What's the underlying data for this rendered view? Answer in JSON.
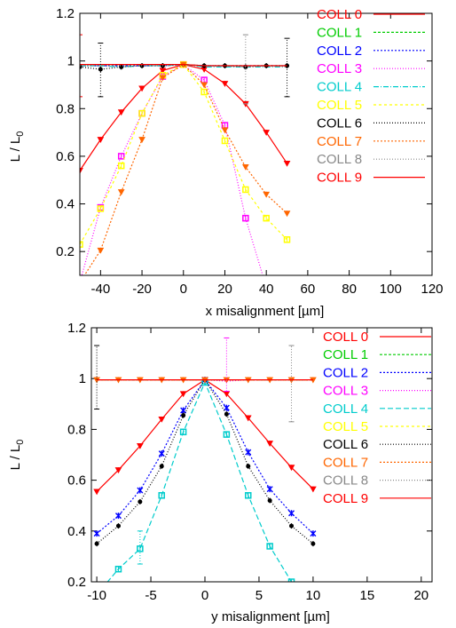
{
  "chart_data": [
    {
      "type": "line",
      "xlabel": "x misalignment [µm]",
      "ylabel_main": "L / L",
      "ylabel_sub": "0",
      "xlim": [
        -50,
        120
      ],
      "ylim": [
        0.1,
        1.2
      ],
      "xticks": [
        "-40",
        "-20",
        "0",
        "20",
        "40",
        "60",
        "80",
        "100",
        "120"
      ],
      "xtick_values": [
        -40,
        -20,
        0,
        20,
        40,
        60,
        80,
        100,
        120
      ],
      "yticks": [
        "0.2",
        "0.4",
        "0.6",
        "0.8",
        "1",
        "1.2"
      ],
      "ytick_values": [
        0.2,
        0.4,
        0.6,
        0.8,
        1.0,
        1.2
      ],
      "legend_position": "top-right",
      "series": [
        {
          "name": "COLL 0",
          "color": "#ff0000",
          "dash": "",
          "marker": "tri",
          "x": [
            -50,
            -40,
            -30,
            -20,
            -10,
            0,
            10,
            20,
            30,
            40,
            50
          ],
          "y": [
            0.54,
            0.67,
            0.785,
            0.885,
            0.96,
            0.985,
            0.965,
            0.905,
            0.82,
            0.7,
            0.57
          ]
        },
        {
          "name": "COLL 1",
          "color": "#00cc00",
          "dash": "3,2",
          "marker": "none",
          "x": [
            -50,
            -40,
            -30,
            -20,
            -10,
            0,
            10,
            20,
            30,
            40,
            50
          ],
          "y": [
            0.985,
            0.985,
            0.985,
            0.985,
            0.985,
            0.985,
            0.98,
            0.98,
            0.98,
            0.98,
            0.98
          ]
        },
        {
          "name": "COLL 2",
          "color": "#0000ff",
          "dash": "2,2",
          "marker": "none",
          "x": [
            -50,
            -40,
            -30,
            -20,
            -10,
            0,
            10,
            20,
            30,
            40,
            50
          ],
          "y": [
            0.98,
            0.98,
            0.98,
            0.98,
            0.98,
            0.985,
            0.98,
            0.98,
            0.98,
            0.98,
            0.98
          ]
        },
        {
          "name": "COLL 3",
          "color": "#ff00ff",
          "dash": "1,2",
          "marker": "square",
          "x": [
            -50,
            -40,
            -30,
            -20,
            -10,
            0,
            10,
            20,
            30,
            40
          ],
          "y": [
            0.07,
            0.385,
            0.6,
            0.78,
            0.935,
            0.985,
            0.92,
            0.73,
            0.34,
            0.05
          ]
        },
        {
          "name": "COLL 4",
          "color": "#00cccc",
          "dash": "6,2,1,2",
          "marker": "none",
          "x": [
            -50,
            -40,
            -30,
            -20,
            -10,
            0,
            10,
            20,
            30,
            40,
            50
          ],
          "y": [
            0.98,
            0.98,
            0.975,
            0.98,
            0.98,
            0.985,
            0.975,
            0.975,
            0.975,
            0.975,
            0.975
          ]
        },
        {
          "name": "COLL 5",
          "color": "#ffff00",
          "dash": "3,3",
          "marker": "square",
          "x": [
            -50,
            -40,
            -30,
            -20,
            -10,
            0,
            10,
            20,
            30,
            40,
            50
          ],
          "y": [
            0.23,
            0.38,
            0.56,
            0.78,
            0.94,
            0.985,
            0.87,
            0.665,
            0.46,
            0.34,
            0.25
          ]
        },
        {
          "name": "COLL 6",
          "color": "#000000",
          "dash": "1,2",
          "marker": "dot",
          "x": [
            -50,
            -40,
            -30,
            -20,
            -10,
            0,
            10,
            20,
            30,
            40,
            50
          ],
          "y": [
            0.975,
            0.965,
            0.975,
            0.98,
            0.98,
            0.985,
            0.98,
            0.98,
            0.975,
            0.98,
            0.98
          ]
        },
        {
          "name": "COLL 7",
          "color": "#ff6600",
          "dash": "2,2",
          "marker": "tri",
          "x": [
            -50,
            -40,
            -30,
            -20,
            -10,
            0,
            10,
            20,
            30,
            40,
            50
          ],
          "y": [
            0.07,
            0.205,
            0.45,
            0.67,
            0.93,
            0.985,
            0.9,
            0.71,
            0.555,
            0.44,
            0.36
          ]
        },
        {
          "name": "COLL 8",
          "color": "#888888",
          "dash": "1,2",
          "marker": "none",
          "x": [
            -50,
            -40,
            -30,
            -20,
            -10,
            0,
            10,
            20,
            30,
            40,
            50
          ],
          "y": [
            0.98,
            0.98,
            0.98,
            0.98,
            0.98,
            0.985,
            0.98,
            0.98,
            0.975,
            0.98,
            0.975
          ]
        },
        {
          "name": "COLL 9",
          "color": "#ff0000",
          "dash": "",
          "marker": "none",
          "x": [
            -50,
            -40,
            -30,
            -20,
            -10,
            0,
            10,
            20,
            30,
            40,
            50
          ],
          "y": [
            0.985,
            0.985,
            0.985,
            0.985,
            0.985,
            0.985,
            0.98,
            0.98,
            0.98,
            0.98,
            0.98
          ]
        }
      ],
      "errorbars": [
        {
          "color": "#ff0000",
          "x": -50,
          "lo": 0.85,
          "hi": 1.11
        },
        {
          "color": "#000000",
          "x": -40,
          "lo": 0.85,
          "hi": 1.075
        },
        {
          "color": "#888888",
          "x": 30,
          "lo": 0.82,
          "hi": 1.11
        },
        {
          "color": "#000000",
          "x": 50,
          "lo": 0.85,
          "hi": 1.095
        }
      ]
    },
    {
      "type": "line",
      "xlabel": "y misalignment [µm]",
      "ylabel_main": "L / L",
      "ylabel_sub": "0",
      "xlim": [
        -10.5,
        21
      ],
      "ylim": [
        0.2,
        1.2
      ],
      "xticks": [
        "-10",
        "-5",
        "0",
        "5",
        "10",
        "15",
        "20"
      ],
      "xtick_values": [
        -10,
        -5,
        0,
        5,
        10,
        15,
        20
      ],
      "yticks": [
        "0.2",
        "0.4",
        "0.6",
        "0.8",
        "1",
        "1.2"
      ],
      "ytick_values": [
        0.2,
        0.4,
        0.6,
        0.8,
        1.0,
        1.2
      ],
      "legend_position": "top-right",
      "series": [
        {
          "name": "COLL 0",
          "color": "#ff0000",
          "dash": "",
          "marker": "tri",
          "x": [
            -10,
            -8,
            -6,
            -4,
            -2,
            0,
            2,
            4,
            6,
            8,
            10
          ],
          "y": [
            0.555,
            0.64,
            0.735,
            0.84,
            0.94,
            0.995,
            0.94,
            0.845,
            0.745,
            0.65,
            0.565
          ]
        },
        {
          "name": "COLL 1",
          "color": "#00cc00",
          "dash": "3,2",
          "marker": "none",
          "x": [
            -10,
            -8,
            -6,
            -4,
            -2,
            0,
            2,
            4,
            6,
            8,
            10
          ],
          "y": [
            0.995,
            0.995,
            0.995,
            0.995,
            0.995,
            0.995,
            0.995,
            0.995,
            0.995,
            0.995,
            0.995
          ]
        },
        {
          "name": "COLL 2",
          "color": "#0000ff",
          "dash": "2,2",
          "marker": "star",
          "x": [
            -10,
            -8,
            -6,
            -4,
            -2,
            0,
            2,
            4,
            6,
            8,
            10
          ],
          "y": [
            0.39,
            0.46,
            0.56,
            0.705,
            0.875,
            0.995,
            0.885,
            0.71,
            0.565,
            0.47,
            0.39
          ]
        },
        {
          "name": "COLL 3",
          "color": "#ff00ff",
          "dash": "1,2",
          "marker": "none",
          "x": [
            -10,
            -8,
            -6,
            -4,
            -2,
            0,
            2,
            4,
            6,
            8,
            10
          ],
          "y": [
            0.995,
            0.995,
            0.995,
            0.995,
            0.995,
            0.995,
            0.99,
            0.995,
            0.995,
            0.995,
            0.995
          ]
        },
        {
          "name": "COLL 4",
          "color": "#00cccc",
          "dash": "6,3",
          "marker": "square",
          "x": [
            -10,
            -8,
            -6,
            -4,
            -2,
            0,
            2,
            4,
            6,
            8,
            10
          ],
          "y": [
            0.15,
            0.25,
            0.33,
            0.54,
            0.79,
            0.985,
            0.78,
            0.54,
            0.34,
            0.2,
            0.09
          ]
        },
        {
          "name": "COLL 5",
          "color": "#ffff00",
          "dash": "3,3",
          "marker": "none",
          "x": [
            -10,
            -8,
            -6,
            -4,
            -2,
            0,
            2,
            4,
            6,
            8,
            10
          ],
          "y": [
            0.995,
            0.995,
            0.995,
            0.995,
            0.995,
            0.995,
            0.995,
            0.995,
            0.995,
            0.995,
            0.995
          ]
        },
        {
          "name": "COLL 6",
          "color": "#000000",
          "dash": "1,2",
          "marker": "dot",
          "x": [
            -10,
            -8,
            -6,
            -4,
            -2,
            0,
            2,
            4,
            6,
            8,
            10
          ],
          "y": [
            0.35,
            0.42,
            0.515,
            0.655,
            0.855,
            0.995,
            0.86,
            0.655,
            0.52,
            0.42,
            0.35
          ]
        },
        {
          "name": "COLL 7",
          "color": "#ff6600",
          "dash": "2,2",
          "marker": "tri",
          "x": [
            -10,
            -8,
            -6,
            -4,
            -2,
            0,
            2,
            4,
            6,
            8,
            10
          ],
          "y": [
            0.995,
            0.995,
            0.995,
            0.995,
            0.995,
            0.995,
            0.995,
            0.995,
            0.995,
            0.995,
            0.995
          ]
        },
        {
          "name": "COLL 8",
          "color": "#888888",
          "dash": "1,2",
          "marker": "none",
          "x": [
            -10,
            -8,
            -6,
            -4,
            -2,
            0,
            2,
            4,
            6,
            8,
            10
          ],
          "y": [
            0.995,
            0.995,
            0.995,
            0.995,
            0.995,
            0.995,
            0.995,
            0.995,
            0.995,
            0.995,
            0.995
          ]
        },
        {
          "name": "COLL 9",
          "color": "#ff0000",
          "dash": "",
          "marker": "none",
          "x": [
            -10,
            -8,
            -6,
            -4,
            -2,
            0,
            2,
            4,
            6,
            8,
            10
          ],
          "y": [
            0.995,
            0.995,
            0.995,
            0.995,
            0.995,
            0.995,
            0.995,
            0.995,
            0.995,
            0.995,
            0.995
          ]
        }
      ],
      "errorbars": [
        {
          "color": "#000000",
          "x": -10,
          "lo": 0.88,
          "hi": 1.13
        },
        {
          "color": "#ff00ff",
          "x": 2,
          "lo": 0.95,
          "hi": 1.16
        },
        {
          "color": "#888888",
          "x": 8,
          "lo": 0.83,
          "hi": 1.13
        },
        {
          "color": "#00cccc",
          "x": -6,
          "lo": 0.27,
          "hi": 0.4
        }
      ]
    }
  ]
}
